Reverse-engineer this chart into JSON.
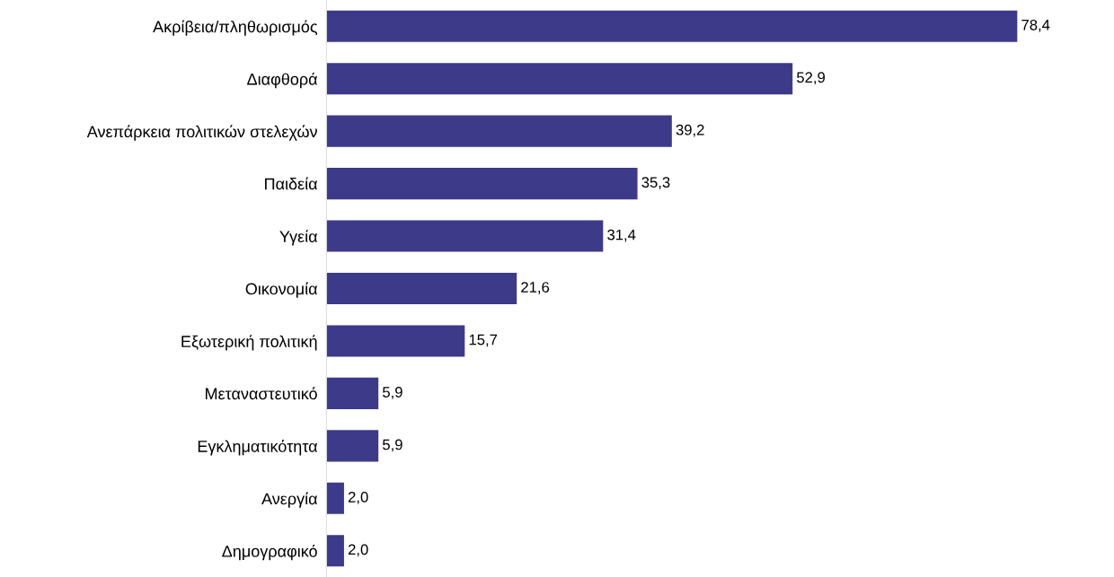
{
  "chart_data": {
    "type": "bar",
    "orientation": "horizontal",
    "categories": [
      "Ακρίβεια/πληθωρισμός",
      "Διαφθορά",
      "Ανεπάρκεια πολιτικών στελεχών",
      "Παιδεία",
      "Υγεία",
      "Οικονομία",
      "Εξωτερική πολιτική",
      "Μεταναστευτικό",
      "Εγκληματικότητα",
      "Ανεργία",
      "Δημογραφικό"
    ],
    "values": [
      78.4,
      52.9,
      39.2,
      35.3,
      31.4,
      21.6,
      15.7,
      5.9,
      5.9,
      2.0,
      2.0
    ],
    "value_labels": [
      "78,4",
      "52,9",
      "39,2",
      "35,3",
      "31,4",
      "21,6",
      "15,7",
      "5,9",
      "5,9",
      "2,0",
      "2,0"
    ],
    "color": "#3d3a8a",
    "grid": false,
    "legend": false,
    "tick_labels": "y"
  }
}
